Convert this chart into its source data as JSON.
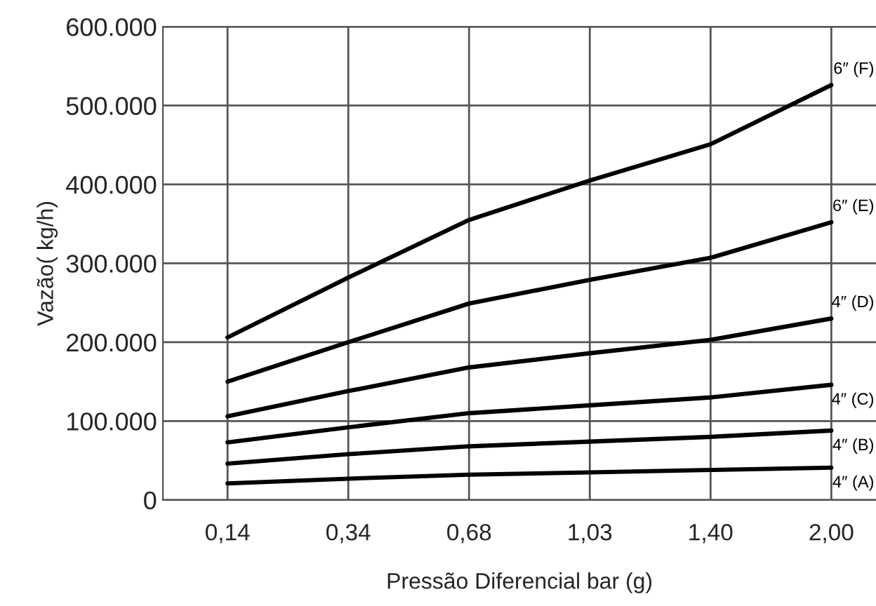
{
  "chart_data": {
    "type": "line",
    "xlabel": "Pressão Diferencial bar (g)",
    "ylabel": "Vazão( kg/h)",
    "categories": [
      "0,14",
      "0,34",
      "0,68",
      "1,03",
      "1,40",
      "2,00"
    ],
    "series": [
      {
        "name": "4″ (A)",
        "color": "#000000",
        "values": [
          21000,
          27000,
          32000,
          35000,
          38000,
          41000
        ]
      },
      {
        "name": "4″ (B)",
        "color": "#000000",
        "values": [
          46000,
          58000,
          68000,
          74000,
          80000,
          88000
        ]
      },
      {
        "name": "4″ (C)",
        "color": "#000000",
        "values": [
          73000,
          92000,
          110000,
          120000,
          130000,
          146000
        ]
      },
      {
        "name": "4″ (D)",
        "color": "#000000",
        "values": [
          106000,
          138000,
          168000,
          186000,
          203000,
          230000
        ]
      },
      {
        "name": "6″ (E)",
        "color": "#000000",
        "values": [
          150000,
          200000,
          249000,
          279000,
          307000,
          352000
        ]
      },
      {
        "name": "6″ (F)",
        "color": "#000000",
        "values": [
          206000,
          282000,
          355000,
          405000,
          451000,
          526000
        ]
      }
    ],
    "ylim": [
      0,
      600000
    ],
    "yticks": [
      {
        "value": 0,
        "label": "0"
      },
      {
        "value": 100000,
        "label": "100.000"
      },
      {
        "value": 200000,
        "label": "200.000"
      },
      {
        "value": 300000,
        "label": "300.000"
      },
      {
        "value": 400000,
        "label": "400.000"
      },
      {
        "value": 500000,
        "label": "500.000"
      },
      {
        "value": 600000,
        "label": "600.000"
      }
    ],
    "grid": true,
    "legend": false,
    "marker": "none",
    "line_style": "solid"
  }
}
